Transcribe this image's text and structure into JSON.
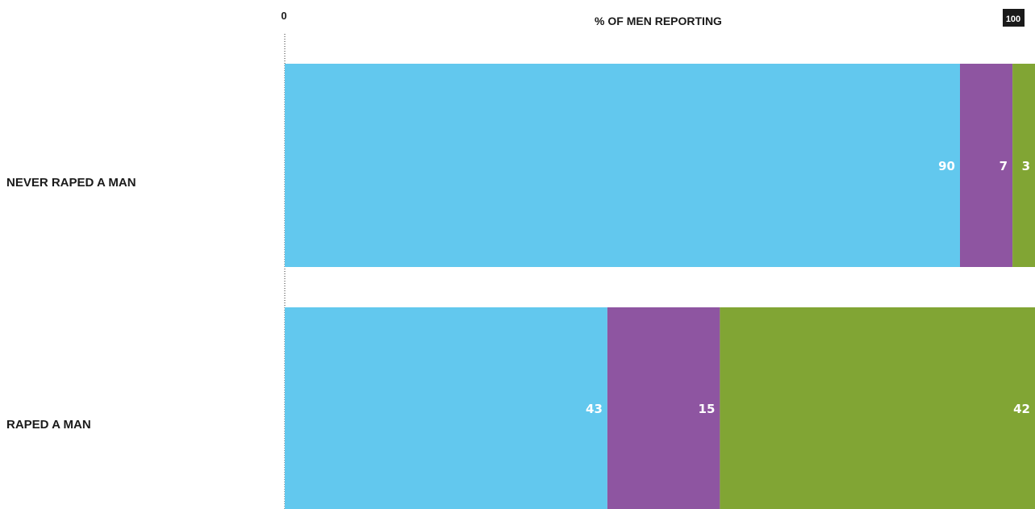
{
  "chart_data": {
    "type": "bar",
    "orientation": "horizontal",
    "stacked": true,
    "title": "% OF MEN REPORTING",
    "xlim": [
      0,
      100
    ],
    "x_tick_labels": [
      "0",
      "100"
    ],
    "categories": [
      "NEVER RAPED A MAN",
      "RAPED A MAN"
    ],
    "series": [
      {
        "values": [
          90,
          43
        ],
        "color": "#62c8ee"
      },
      {
        "values": [
          7,
          15
        ],
        "color": "#8e55a1"
      },
      {
        "values": [
          3,
          42
        ],
        "color": "#81a534"
      }
    ],
    "value_labels": [
      [
        "90",
        "7",
        "3"
      ],
      [
        "43",
        "15",
        "42"
      ]
    ],
    "grid": false,
    "legend": "none"
  }
}
